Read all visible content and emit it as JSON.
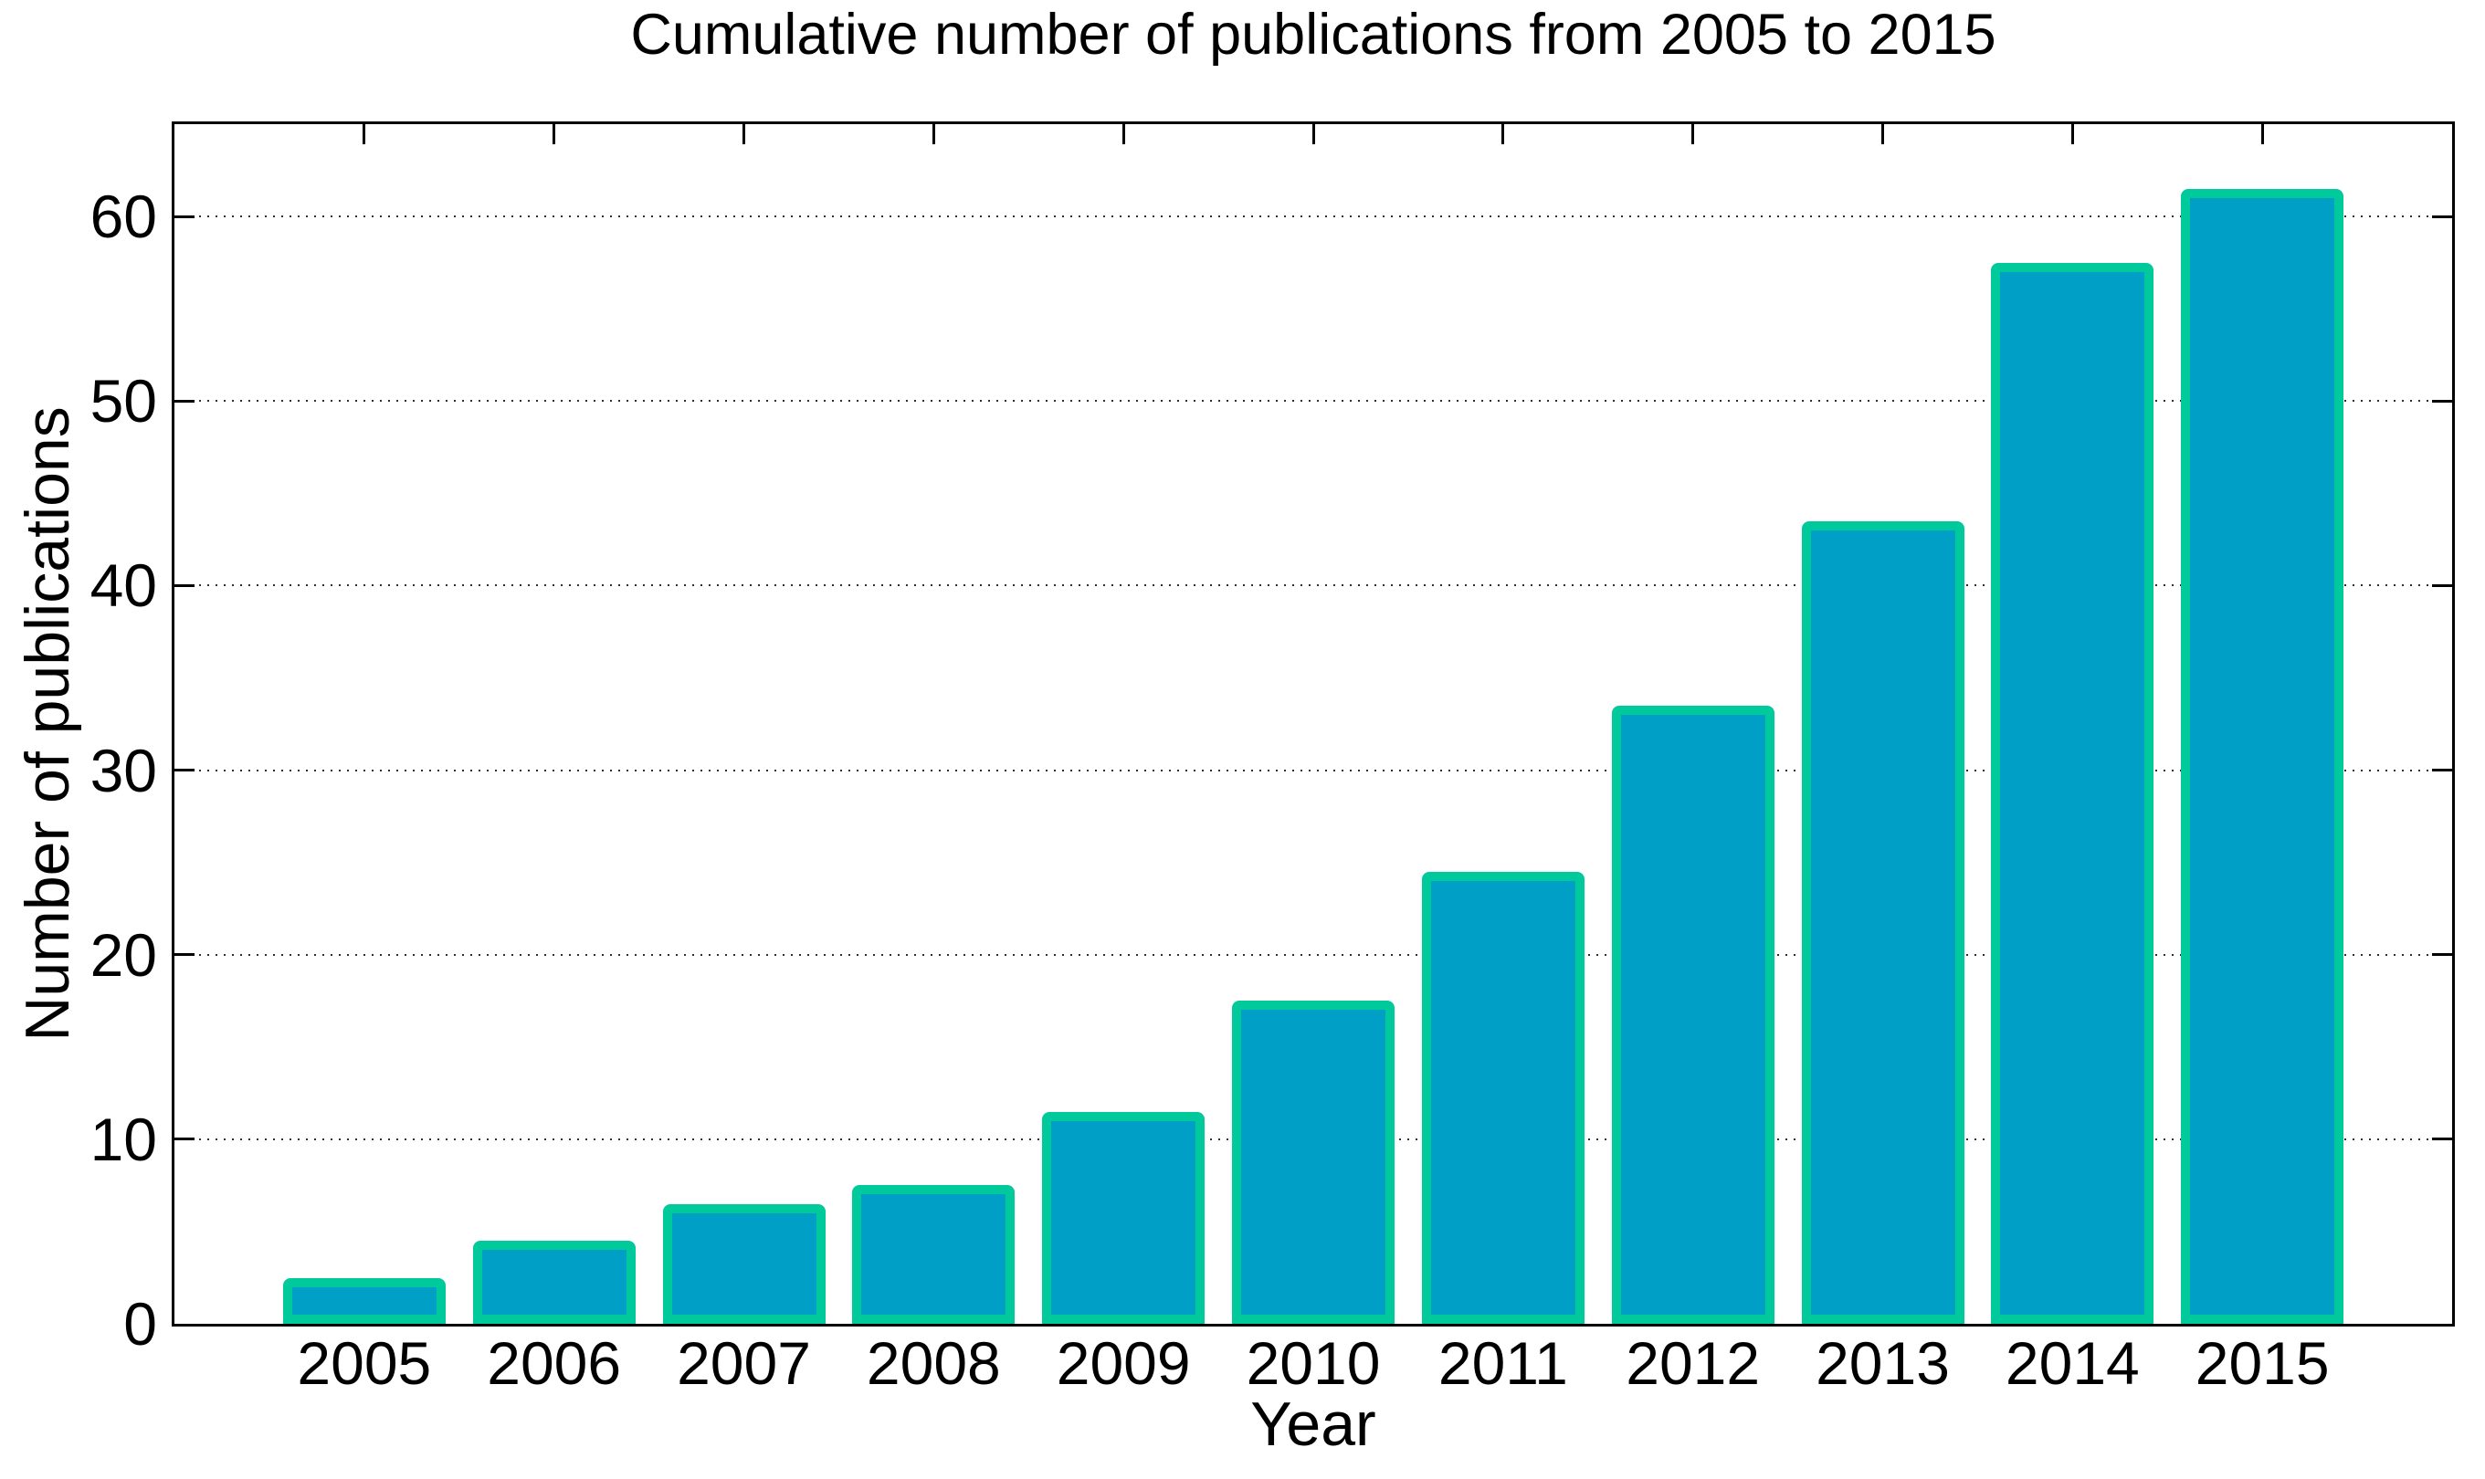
{
  "chart_data": {
    "type": "bar",
    "title": "Cumulative number of publications from 2005 to 2015",
    "xlabel": "Year",
    "ylabel": "Number of publications",
    "categories": [
      "2005",
      "2006",
      "2007",
      "2008",
      "2009",
      "2010",
      "2011",
      "2012",
      "2013",
      "2014",
      "2015"
    ],
    "values": [
      2,
      4,
      6,
      7,
      11,
      17,
      24,
      33,
      43,
      57,
      61
    ],
    "yticks": [
      0,
      10,
      20,
      30,
      40,
      50,
      60
    ],
    "ylim": [
      0,
      65
    ],
    "xlim": [
      2004,
      2016
    ],
    "grid": "horizontal-dotted",
    "legend": "none",
    "box": "on",
    "bar_fill_color": "#00A0C6",
    "bar_edge_color": "#00C99B",
    "axis_color": "#000000",
    "grid_color": "#2e2e2e",
    "background_color": "#ffffff"
  }
}
